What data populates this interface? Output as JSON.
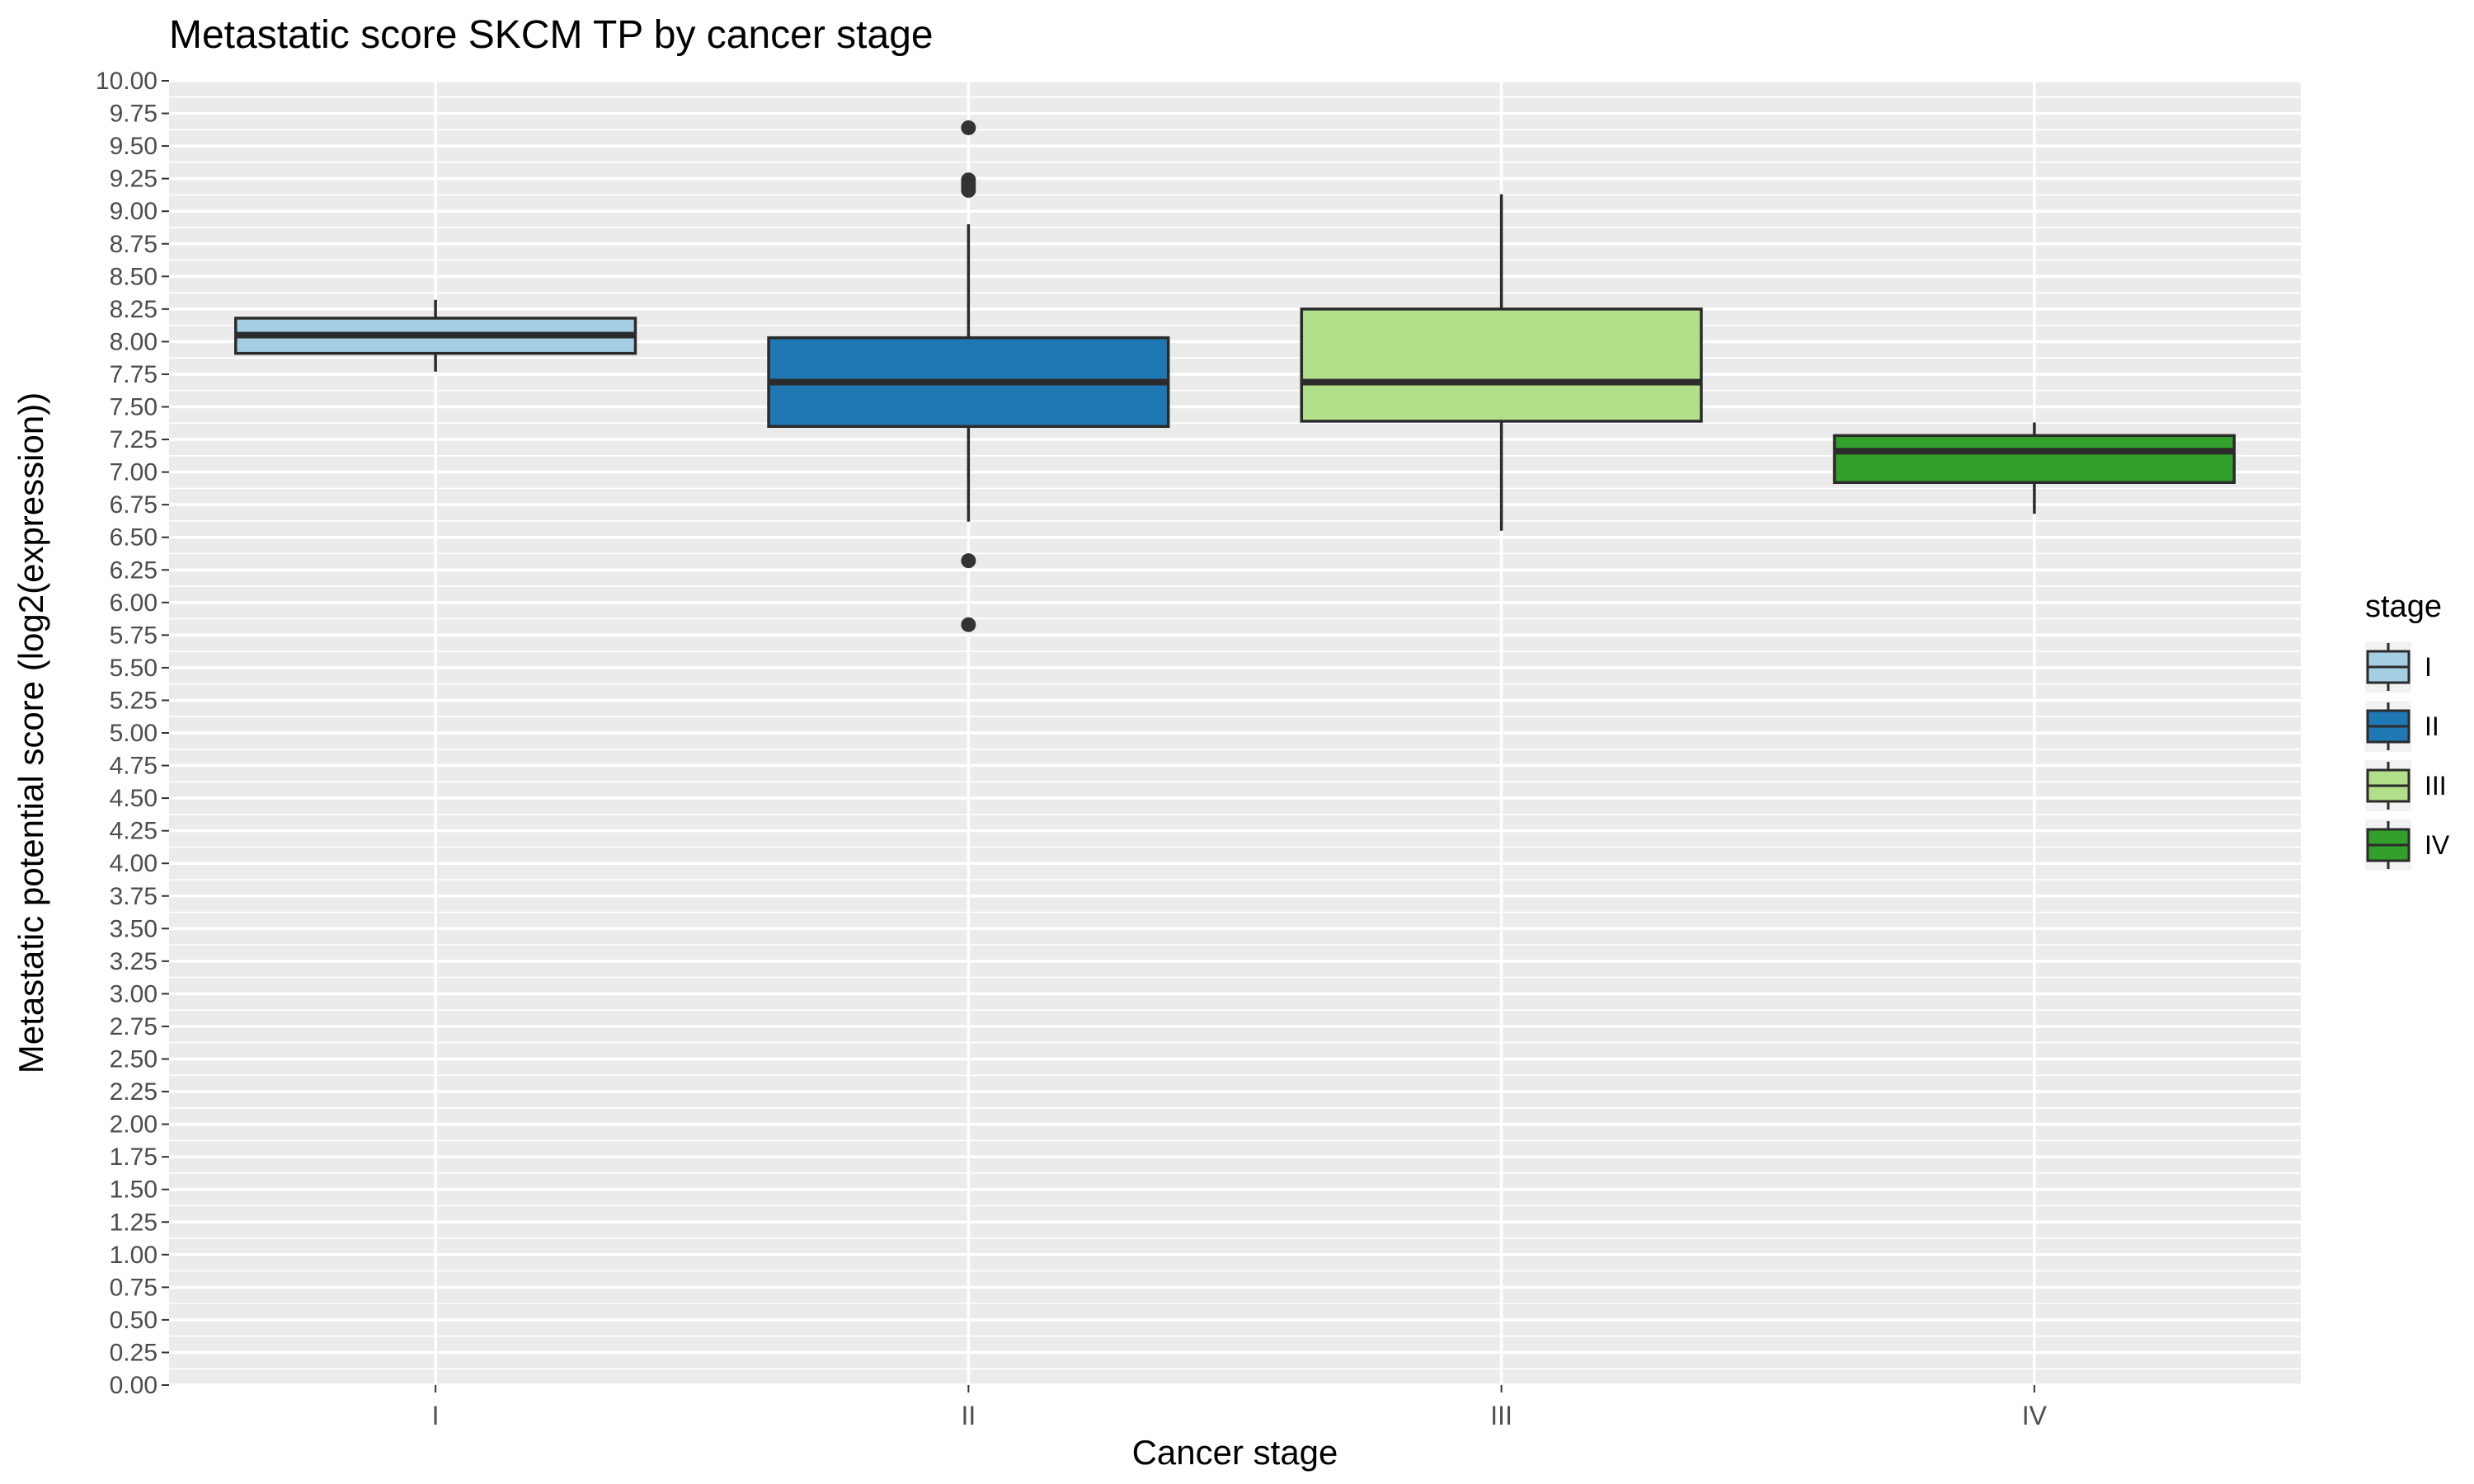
{
  "chart_data": {
    "type": "boxplot",
    "title": "Metastatic score SKCM TP by cancer stage",
    "xlabel": "Cancer stage",
    "ylabel": "Metastatic potential score (log2(expression))",
    "ylim": [
      0,
      10
    ],
    "y_tick_step": 0.25,
    "categories": [
      "I",
      "II",
      "III",
      "IV"
    ],
    "series": [
      {
        "name": "I",
        "color": "#a6cee3",
        "whisker_low": 7.77,
        "q1": 7.91,
        "median": 8.05,
        "q3": 8.18,
        "whisker_high": 8.32,
        "outliers": []
      },
      {
        "name": "II",
        "color": "#1f78b4",
        "whisker_low": 6.62,
        "q1": 7.35,
        "median": 7.69,
        "q3": 8.03,
        "whisker_high": 8.9,
        "outliers": [
          9.64,
          9.24,
          9.21,
          9.19,
          9.16,
          6.32,
          5.83
        ]
      },
      {
        "name": "III",
        "color": "#b2df8a",
        "whisker_low": 6.55,
        "q1": 7.39,
        "median": 7.69,
        "q3": 8.25,
        "whisker_high": 9.13,
        "outliers": []
      },
      {
        "name": "IV",
        "color": "#33a02c",
        "whisker_low": 6.68,
        "q1": 6.92,
        "median": 7.16,
        "q3": 7.28,
        "whisker_high": 7.38,
        "outliers": []
      }
    ],
    "grid": true,
    "background": "#ebebeb",
    "legend": {
      "title": "stage",
      "position": "right",
      "entries": [
        "I",
        "II",
        "III",
        "IV"
      ]
    }
  }
}
